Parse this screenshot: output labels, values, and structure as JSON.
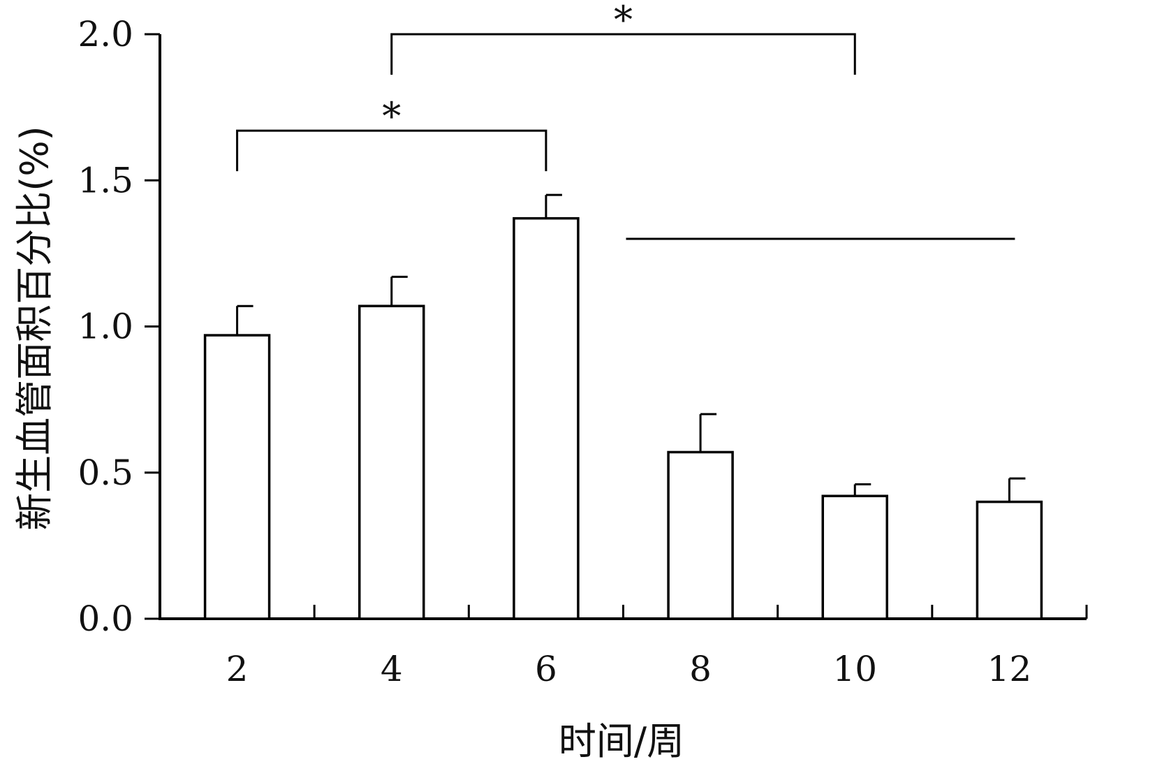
{
  "chart_data": {
    "type": "bar",
    "categories": [
      "2",
      "4",
      "6",
      "8",
      "10",
      "12"
    ],
    "values": [
      0.97,
      1.07,
      1.37,
      0.57,
      0.42,
      0.4
    ],
    "errors": [
      0.1,
      0.1,
      0.08,
      0.13,
      0.04,
      0.08
    ],
    "xlabel": "时间/周",
    "ylabel": "新生血管面积百分比(%)",
    "ylim": [
      0,
      2.0
    ],
    "yticks": [
      "0.0",
      "0.5",
      "1.0",
      "1.5",
      "2.0"
    ],
    "bar_color": "#ffffff",
    "edge_color": "#000000",
    "grid": false,
    "significance": [
      {
        "from": "2",
        "to": "6",
        "label": "*",
        "level": 1.67
      },
      {
        "from": "4",
        "to": "10",
        "label": "*",
        "level": 2.0
      }
    ],
    "reference_line": {
      "from": "8",
      "to": "12",
      "level": 1.3
    }
  }
}
